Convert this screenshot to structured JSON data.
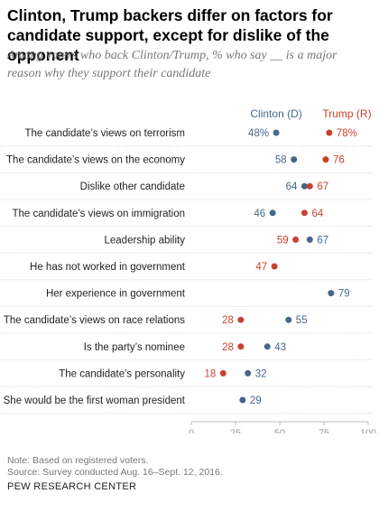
{
  "title": "Clinton, Trump backers differ on factors for candidate support, except for dislike of the opponent",
  "subtitle": "Among voters who back Clinton/Trump, % who say __ is a major reason why they support their candidate",
  "note": "Note: Based on registered voters.",
  "source": "Source: Survey conducted Aug. 16–Sept. 12, 2016.",
  "organization": "PEW RESEARCH CENTER",
  "colors": {
    "clinton": "#466789",
    "trump": "#c9422f",
    "axis": "#bbbbbb",
    "row_line": "#cccccc"
  },
  "chart_data": {
    "type": "dot",
    "xlim": [
      0,
      100
    ],
    "xticks": [
      "0",
      "25",
      "50",
      "75",
      "100"
    ],
    "xtick_values": [
      0,
      25,
      50,
      75,
      100
    ],
    "categories": [
      "The candidate’s views on terrorism",
      "The candidate’s views on the economy",
      "Dislike other candidate",
      "The candidate’s views on immigration",
      "Leadership ability",
      "He has not worked in government",
      "Her experience in government",
      "The candidate’s views on race relations",
      "Is the party’s nominee",
      "The candidate’s personality",
      "She would be the first woman president"
    ],
    "series": [
      {
        "name": "Clinton (D)",
        "values": [
          48,
          58,
          64,
          46,
          67,
          null,
          79,
          55,
          43,
          32,
          29
        ],
        "labels": [
          "48%",
          "58",
          "64",
          "46",
          "67",
          "",
          "79",
          "55",
          "43",
          "32",
          "29"
        ]
      },
      {
        "name": "Trump (R)",
        "values": [
          78,
          76,
          67,
          64,
          59,
          47,
          null,
          28,
          28,
          18,
          null
        ],
        "labels": [
          "78%",
          "76",
          "67",
          "64",
          "59",
          "47",
          "",
          "28",
          "28",
          "18",
          ""
        ]
      }
    ]
  }
}
